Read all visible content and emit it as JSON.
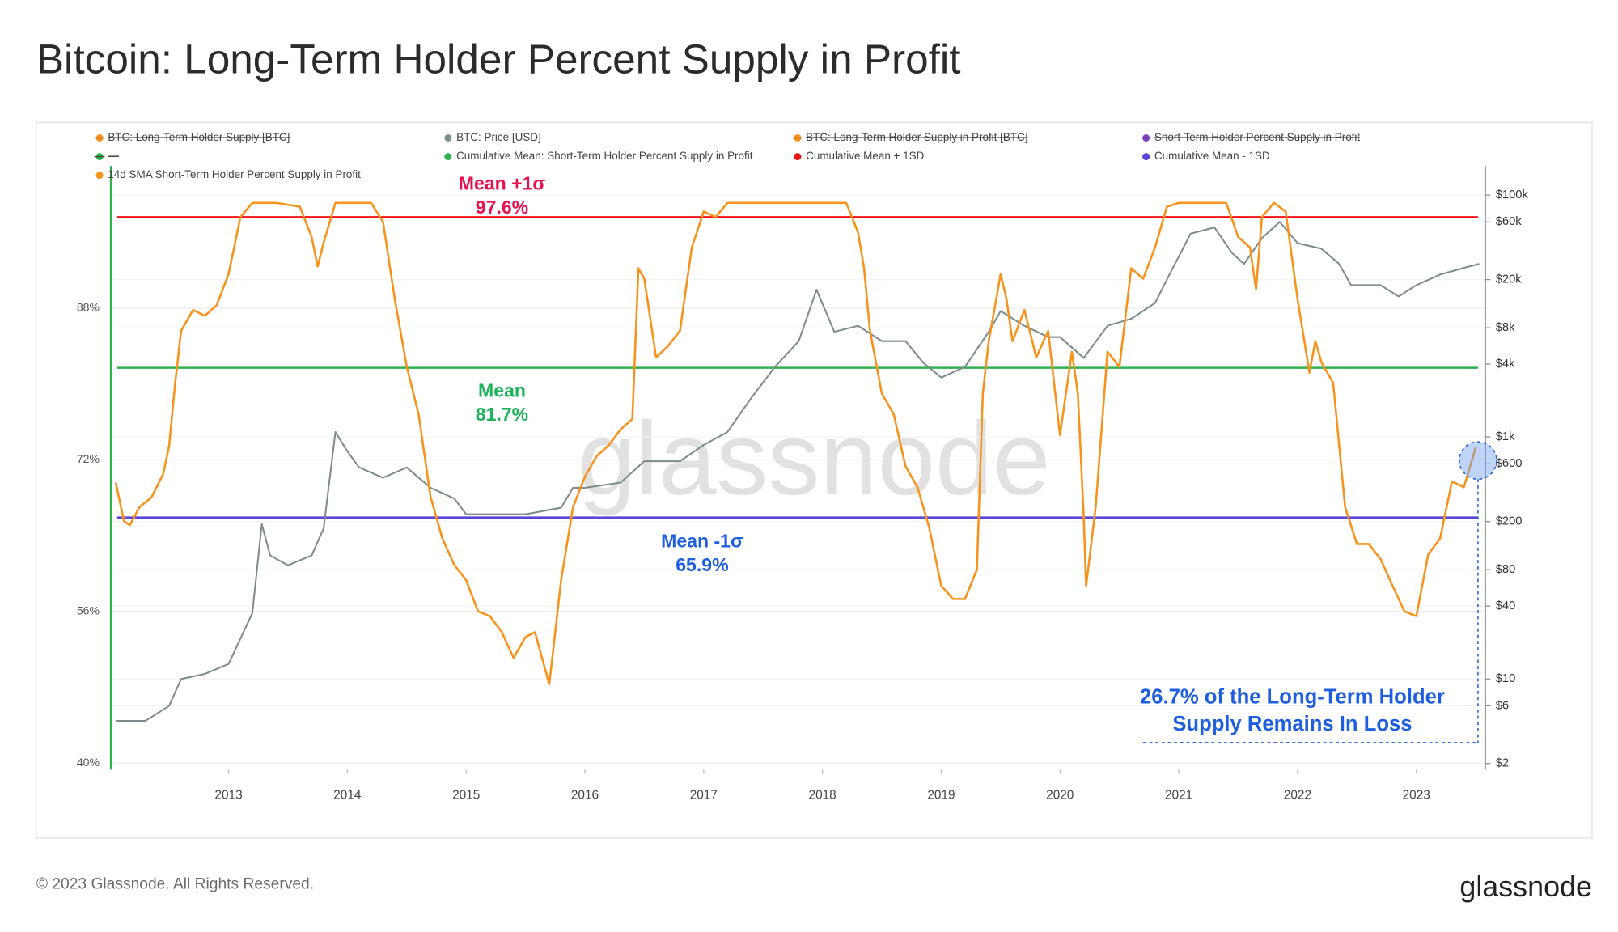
{
  "chart_data": {
    "type": "line",
    "title": "Bitcoin: Long-Term Holder Percent Supply in Profit",
    "watermark": "glassnode",
    "footer": "© 2023 Glassnode. All Rights Reserved.",
    "brand": "glassnode",
    "legend": [
      {
        "name": "BTC: Long-Term Holder Supply [BTC]",
        "color": "#f7931a",
        "struck": true
      },
      {
        "name": "BTC: Price [USD]",
        "color": "#7f8c8d",
        "struck": false
      },
      {
        "name": "BTC: Long-Term Holder Supply in Profit [BTC]",
        "color": "#f7931a",
        "struck": true
      },
      {
        "name": "Short-Term Holder Percent Supply in Profit",
        "color": "#7b3fbf",
        "struck": true
      },
      {
        "name": "—",
        "color": "#2eb24b",
        "struck": true
      },
      {
        "name": "Cumulative Mean: Short-Term Holder Percent Supply in Profit",
        "color": "#2eb24b",
        "struck": false
      },
      {
        "name": "Cumulative Mean + 1SD",
        "color": "#f01414",
        "struck": false
      },
      {
        "name": "Cumulative Mean - 1SD",
        "color": "#5a45d6",
        "struck": false
      },
      {
        "name": "14d SMA Short-Term Holder Percent Supply in Profit",
        "color": "#f7931a",
        "struck": false
      }
    ],
    "xlim": [
      2012.01,
      2023.58
    ],
    "xticks": [
      2013,
      2014,
      2015,
      2016,
      2017,
      2018,
      2019,
      2020,
      2021,
      2022,
      2023
    ],
    "ylim": [
      39.3,
      103
    ],
    "yticks": [
      {
        "value": 40,
        "label": "40%"
      },
      {
        "value": 56,
        "label": "56%"
      },
      {
        "value": 72,
        "label": "72%"
      },
      {
        "value": 88,
        "label": "88%"
      }
    ],
    "y2lim": [
      1.78,
      174000
    ],
    "y2scale": "log",
    "y2ticks": [
      {
        "value": 2,
        "label": "$2"
      },
      {
        "value": 6,
        "label": "$6"
      },
      {
        "value": 10,
        "label": "$10"
      },
      {
        "value": 40,
        "label": "$40"
      },
      {
        "value": 80,
        "label": "$80"
      },
      {
        "value": 200,
        "label": "$200"
      },
      {
        "value": 600,
        "label": "$600"
      },
      {
        "value": 1000,
        "label": "$1k"
      },
      {
        "value": 4000,
        "label": "$4k"
      },
      {
        "value": 8000,
        "label": "$8k"
      },
      {
        "value": 20000,
        "label": "$20k"
      },
      {
        "value": 60000,
        "label": "$60k"
      },
      {
        "value": 100000,
        "label": "$100k"
      }
    ],
    "grid": true,
    "reference_lines": [
      {
        "label": "Mean +1σ",
        "value": 97.6,
        "value_label": "97.6%",
        "color": "#f01414",
        "label_color": "#e8114f"
      },
      {
        "label": "Mean",
        "value": 81.7,
        "value_label": "81.7%",
        "color": "#2eb24b",
        "label_color": "#1db35a"
      },
      {
        "label": "Mean -1σ",
        "value": 65.9,
        "value_label": "65.9%",
        "color": "#5a45d6",
        "label_color": "#1e5fe0"
      }
    ],
    "callout": {
      "lines": [
        "26.7% of the Long-Term Holder",
        "Supply Remains In Loss"
      ],
      "color": "#1e5fe0"
    },
    "series": [
      {
        "name": "14d SMA Short-Term Holder Percent Supply in Profit",
        "color": "#f7931a",
        "axis": "y",
        "x": [
          2012.05,
          2012.12,
          2012.17,
          2012.25,
          2012.35,
          2012.45,
          2012.5,
          2012.55,
          2012.6,
          2012.7,
          2012.8,
          2012.9,
          2013.0,
          2013.1,
          2013.2,
          2013.4,
          2013.6,
          2013.7,
          2013.75,
          2013.8,
          2013.9,
          2014.0,
          2014.2,
          2014.3,
          2014.4,
          2014.5,
          2014.6,
          2014.7,
          2014.8,
          2014.9,
          2015.0,
          2015.1,
          2015.2,
          2015.3,
          2015.4,
          2015.5,
          2015.58,
          2015.7,
          2015.8,
          2015.9,
          2016.0,
          2016.1,
          2016.2,
          2016.3,
          2016.4,
          2016.45,
          2016.5,
          2016.6,
          2016.7,
          2016.8,
          2016.9,
          2017.0,
          2017.1,
          2017.2,
          2018.2,
          2018.3,
          2018.35,
          2018.4,
          2018.5,
          2018.6,
          2018.7,
          2018.8,
          2018.9,
          2019.0,
          2019.1,
          2019.2,
          2019.3,
          2019.35,
          2019.4,
          2019.5,
          2019.55,
          2019.6,
          2019.7,
          2019.8,
          2019.9,
          2020.0,
          2020.1,
          2020.15,
          2020.2,
          2020.22,
          2020.3,
          2020.4,
          2020.5,
          2020.6,
          2020.7,
          2020.8,
          2020.9,
          2021.0,
          2021.4,
          2021.5,
          2021.6,
          2021.65,
          2021.7,
          2021.8,
          2021.9,
          2022.0,
          2022.1,
          2022.15,
          2022.2,
          2022.3,
          2022.4,
          2022.5,
          2022.6,
          2022.7,
          2022.8,
          2022.9,
          2023.0,
          2023.1,
          2023.2,
          2023.3,
          2023.4,
          2023.5
        ],
        "values": [
          69.6,
          65.5,
          65.1,
          67,
          68,
          70.5,
          73.5,
          80,
          85.6,
          87.8,
          87.2,
          88.3,
          91.6,
          97.6,
          99.1,
          99.1,
          98.7,
          95.5,
          92.4,
          94.9,
          99.1,
          99.1,
          99.1,
          97.1,
          88.9,
          81.8,
          76.8,
          68.1,
          63.7,
          60.9,
          59.3,
          56,
          55.5,
          53.8,
          51.1,
          53.3,
          53.8,
          48.3,
          59.3,
          67,
          70.2,
          72.4,
          73.5,
          75.2,
          76.3,
          92.2,
          91.1,
          82.8,
          84,
          85.6,
          94.4,
          98.2,
          97.6,
          99.1,
          99.1,
          96,
          92.2,
          85.6,
          79,
          76.8,
          71.3,
          69.1,
          64.8,
          58.7,
          57.3,
          57.3,
          60.4,
          79,
          84.5,
          91.6,
          88.9,
          84.5,
          87.8,
          82.8,
          85.6,
          74.6,
          83.4,
          79,
          65.9,
          58.7,
          67,
          83.4,
          81.8,
          92.2,
          91.1,
          94.4,
          98.7,
          99.1,
          99.1,
          95.5,
          94.4,
          90,
          97.6,
          99.1,
          98.2,
          88.9,
          81.2,
          84.5,
          82.3,
          80.1,
          67,
          63.1,
          63.1,
          61.5,
          58.7,
          56,
          55.5,
          62,
          63.7,
          69.7,
          69.1,
          73.3
        ]
      },
      {
        "name": "BTC: Price [USD]",
        "color": "#7f8c8d",
        "axis": "y2",
        "x": [
          2012.05,
          2012.3,
          2012.5,
          2012.6,
          2012.8,
          2013.0,
          2013.2,
          2013.28,
          2013.35,
          2013.5,
          2013.7,
          2013.8,
          2013.9,
          2014.0,
          2014.1,
          2014.3,
          2014.5,
          2014.7,
          2014.9,
          2015.0,
          2015.2,
          2015.5,
          2015.8,
          2015.9,
          2016.0,
          2016.3,
          2016.5,
          2016.8,
          2017.0,
          2017.2,
          2017.4,
          2017.6,
          2017.8,
          2017.95,
          2018.1,
          2018.3,
          2018.5,
          2018.7,
          2018.85,
          2019.0,
          2019.2,
          2019.4,
          2019.5,
          2019.7,
          2019.9,
          2020.0,
          2020.2,
          2020.4,
          2020.6,
          2020.8,
          2020.95,
          2021.1,
          2021.3,
          2021.45,
          2021.55,
          2021.7,
          2021.85,
          2022.0,
          2022.2,
          2022.35,
          2022.45,
          2022.7,
          2022.85,
          2023.0,
          2023.2,
          2023.4,
          2023.53
        ],
        "values": [
          4.5,
          4.5,
          6,
          10,
          11,
          13.3,
          35,
          190,
          105,
          87,
          105,
          175,
          1100,
          760,
          560,
          460,
          560,
          380,
          310,
          230,
          230,
          230,
          260,
          380,
          380,
          420,
          630,
          630,
          860,
          1100,
          2100,
          3800,
          6200,
          16500,
          7400,
          8300,
          6200,
          6200,
          4100,
          3100,
          3800,
          7400,
          11000,
          8300,
          6700,
          6700,
          4500,
          8300,
          9500,
          12800,
          25000,
          48000,
          54000,
          33000,
          27000,
          44000,
          60000,
          40000,
          36000,
          27000,
          18000,
          18000,
          14500,
          18000,
          22000,
          25000,
          27000
        ]
      }
    ]
  }
}
